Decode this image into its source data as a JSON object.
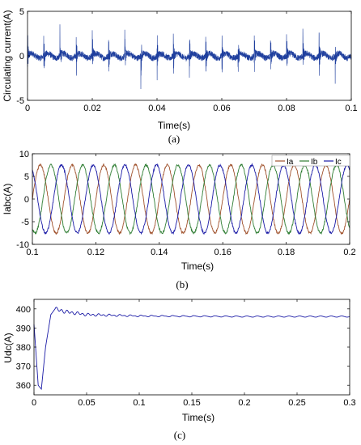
{
  "chart_data": [
    {
      "type": "line",
      "caption": "(a)",
      "xlabel": "Time(s)",
      "ylabel": "Circulating current(A)",
      "xlim": [
        0,
        0.1
      ],
      "ylim": [
        -5,
        5
      ],
      "xticks": [
        "0",
        "0.02",
        "0.04",
        "0.06",
        "0.08",
        "0.1"
      ],
      "yticks": [
        "-5",
        "0",
        "5"
      ],
      "series": [
        {
          "color": "#1f3f9e",
          "period_s": 0.005,
          "baseline": 0,
          "peak_range": [
            -4.5,
            4.0
          ],
          "description": "noisy periodic spikes around 0"
        }
      ],
      "grid": false
    },
    {
      "type": "line",
      "caption": "(b)",
      "xlabel": "Time(s)",
      "ylabel": "Iabc(A)",
      "xlim": [
        0.1,
        0.2
      ],
      "ylim": [
        -10,
        10
      ],
      "xticks": [
        "0.1",
        "0.12",
        "0.14",
        "0.16",
        "0.18",
        "0.2"
      ],
      "yticks": [
        "-10",
        "-5",
        "0",
        "5",
        "10"
      ],
      "legend": [
        "Ia",
        "Ib",
        "Ic"
      ],
      "legend_position": "top-right",
      "series": [
        {
          "name": "Ia",
          "color": "#a0522d",
          "amplitude": 7.5,
          "frequency_hz": 100,
          "phase_deg": 0
        },
        {
          "name": "Ib",
          "color": "#2e7d32",
          "amplitude": 7.5,
          "frequency_hz": 100,
          "phase_deg": -120
        },
        {
          "name": "Ic",
          "color": "#1a1aa6",
          "amplitude": 7.5,
          "frequency_hz": 100,
          "phase_deg": 120
        }
      ],
      "grid": false
    },
    {
      "type": "line",
      "caption": "(c)",
      "xlabel": "Time(s)",
      "ylabel": "Udc(A)",
      "xlim": [
        0,
        0.3
      ],
      "ylim": [
        355,
        405
      ],
      "xticks": [
        "0",
        "0.05",
        "0.1",
        "0.15",
        "0.2",
        "0.25",
        "0.3"
      ],
      "yticks": [
        "360",
        "370",
        "380",
        "390",
        "400"
      ],
      "series": [
        {
          "color": "#1a1aa6",
          "points": [
            [
              0,
              392
            ],
            [
              0.004,
              360
            ],
            [
              0.007,
              358
            ],
            [
              0.011,
              380
            ],
            [
              0.016,
              397
            ],
            [
              0.02,
              400
            ],
            [
              0.03,
              398.5
            ],
            [
              0.05,
              397
            ],
            [
              0.1,
              396.3
            ],
            [
              0.2,
              396
            ],
            [
              0.3,
              396
            ]
          ]
        }
      ],
      "grid": false
    }
  ]
}
